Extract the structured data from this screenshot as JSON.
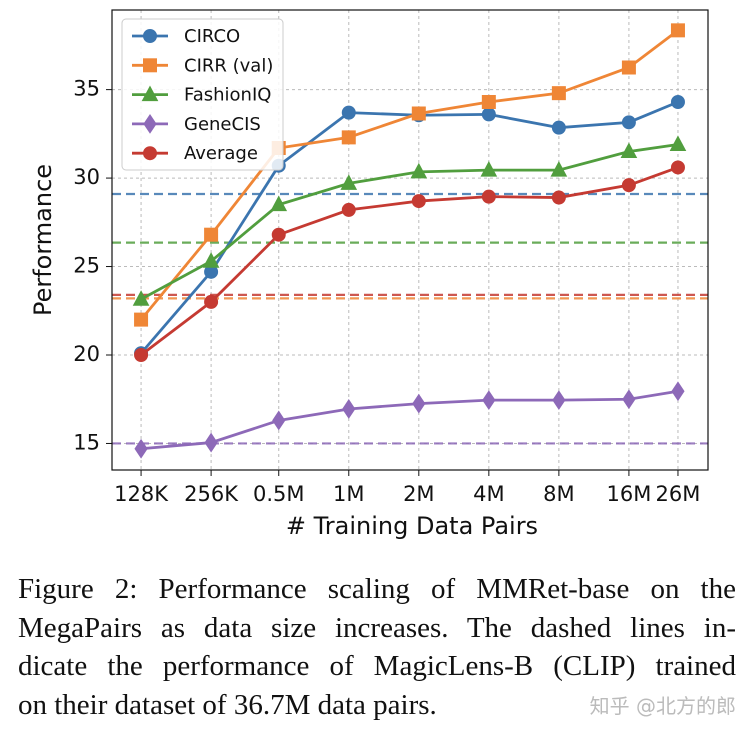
{
  "chart_data": {
    "type": "line",
    "xlabel": "# Training Data Pairs",
    "ylabel": "Performance",
    "x": [
      0.128,
      0.256,
      0.5,
      1,
      2,
      4,
      8,
      16,
      26
    ],
    "xscale": "log",
    "xlim": [
      0.096,
      35
    ],
    "xticks": [
      {
        "value": 0.128,
        "label": "128K"
      },
      {
        "value": 0.256,
        "label": "256K"
      },
      {
        "value": 0.5,
        "label": "0.5M"
      },
      {
        "value": 1,
        "label": "1M"
      },
      {
        "value": 2,
        "label": "2M"
      },
      {
        "value": 4,
        "label": "4M"
      },
      {
        "value": 8,
        "label": "8M"
      },
      {
        "value": 16,
        "label": "16M"
      },
      {
        "value": 26,
        "label": "26M"
      }
    ],
    "ylim": [
      13.5,
      39.5
    ],
    "yticks": [
      15,
      20,
      25,
      30,
      35
    ],
    "grid": true,
    "legend": "upper-left",
    "series": [
      {
        "name": "CIRCO",
        "color": "#3b75af",
        "marker": "circle",
        "baseline": 29.1,
        "values": [
          20.1,
          24.7,
          30.7,
          33.7,
          33.55,
          33.6,
          32.85,
          33.15,
          34.3
        ]
      },
      {
        "name": "CIRR (val)",
        "color": "#ef8636",
        "marker": "square",
        "baseline": 23.2,
        "values": [
          22.0,
          26.8,
          31.7,
          32.3,
          33.65,
          34.3,
          34.8,
          36.25,
          38.35
        ]
      },
      {
        "name": "FashionIQ",
        "color": "#519e3e",
        "marker": "triangle",
        "baseline": 26.35,
        "values": [
          23.15,
          25.3,
          28.5,
          29.7,
          30.35,
          30.45,
          30.45,
          31.5,
          31.9
        ]
      },
      {
        "name": "GeneCIS",
        "color": "#8d69b8",
        "marker": "diamond",
        "baseline": 15.0,
        "values": [
          14.7,
          15.05,
          16.3,
          16.95,
          17.25,
          17.45,
          17.45,
          17.5,
          17.95
        ]
      },
      {
        "name": "Average",
        "color": "#c53a32",
        "marker": "circle",
        "baseline": 23.4,
        "values": [
          20.0,
          23.0,
          26.8,
          28.2,
          28.7,
          28.95,
          28.9,
          29.6,
          30.6
        ]
      }
    ]
  },
  "caption_lines": [
    "Figure 2: Performance scaling of MMRet-base on the",
    "MegaPairs as data size increases. The dashed lines in-",
    "dicate the performance of MagicLens-B (CLIP) trained",
    "on their dataset of 36.7M data pairs."
  ],
  "watermark": "知乎 @北方的郎"
}
